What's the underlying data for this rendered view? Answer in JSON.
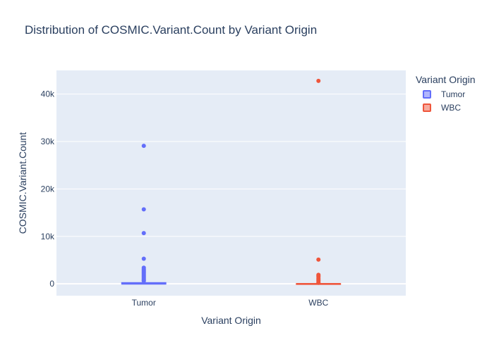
{
  "title": "Distribution of COSMIC.Variant.Count by Variant Origin",
  "chart_data": {
    "type": "box",
    "title": "Distribution of COSMIC.Variant.Count by Variant Origin",
    "xlabel": "Variant Origin",
    "ylabel": "COSMIC.Variant.Count",
    "categories": [
      "Tumor",
      "WBC"
    ],
    "ylim": [
      -2500,
      45000
    ],
    "yticks": [
      0,
      10000,
      20000,
      30000,
      40000
    ],
    "ytick_labels": [
      "0",
      "10k",
      "20k",
      "30k",
      "40k"
    ],
    "grid": true,
    "legend_title": "Variant Origin",
    "legend_position": "top-right",
    "series": [
      {
        "name": "Tumor",
        "color": "#636efa",
        "fill": "rgba(99,110,250,0.5)",
        "category": "Tumor",
        "box": {
          "min": 0,
          "q1": 0,
          "median": 10,
          "q3": 200,
          "max": 450
        },
        "outliers": [
          29100,
          15700,
          10700,
          5300,
          3400,
          3100,
          2900,
          2700,
          2500,
          2300,
          2100,
          1900,
          1700,
          1500,
          1300,
          1100,
          900,
          750,
          600
        ]
      },
      {
        "name": "WBC",
        "color": "#ef553b",
        "fill": "rgba(239,85,59,0.5)",
        "category": "WBC",
        "box": {
          "min": 0,
          "q1": 0,
          "median": 0,
          "q3": 5,
          "max": 12
        },
        "outliers": [
          42800,
          5100,
          1900,
          1700,
          1500,
          1200,
          900,
          700,
          400,
          200
        ]
      }
    ]
  }
}
